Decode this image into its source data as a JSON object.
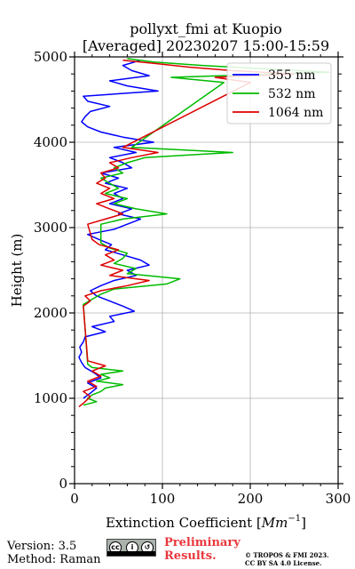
{
  "chart_data": {
    "type": "line",
    "title": "pollyxt_fmi at Kuopio",
    "subtitle": "[Averaged] 20230207 15:00-15:59",
    "xlabel": "Extinction Coefficient [",
    "xlabel_unit_base": "Mm",
    "xlabel_unit_exp": "−1",
    "xlabel_close": "]",
    "ylabel": "Height (m)",
    "xlim": [
      0,
      300
    ],
    "ylim": [
      0,
      5000
    ],
    "x_ticks": [
      0,
      100,
      200,
      300
    ],
    "x_tick_labels": [
      "0",
      "100",
      "200",
      "300"
    ],
    "y_ticks": [
      0,
      1000,
      2000,
      3000,
      4000,
      5000
    ],
    "y_tick_labels": [
      "0",
      "1000",
      "2000",
      "3000",
      "4000",
      "5000"
    ],
    "grid": true,
    "legend_position": "top-right",
    "series": [
      {
        "name": "355 nm",
        "color": "#0000ff",
        "height": [
          1000,
          1060,
          1120,
          1180,
          1240,
          1300,
          1360,
          1420,
          1480,
          1540,
          1600,
          1660,
          1720,
          1780,
          1840,
          1900,
          1960,
          2020,
          2080,
          2140,
          2200,
          2260,
          2320,
          2380,
          2440,
          2500,
          2560,
          2620,
          2680,
          2740,
          2800,
          2860,
          2920,
          2980,
          3040,
          3100,
          3160,
          3220,
          3280,
          3340,
          3400,
          3460,
          3520,
          3580,
          3640,
          3700,
          3760,
          3820,
          3880,
          3940,
          4000,
          4060,
          4120,
          4180,
          4240,
          4300,
          4360,
          4420,
          4480,
          4540,
          4600,
          4660,
          4720,
          4780,
          4840,
          4900,
          4960
        ],
        "values": [
          10,
          18,
          25,
          15,
          30,
          22,
          12,
          8,
          5,
          8,
          6,
          10,
          12,
          35,
          20,
          45,
          40,
          68,
          55,
          40,
          25,
          18,
          30,
          45,
          70,
          60,
          85,
          75,
          55,
          35,
          42,
          28,
          15,
          45,
          60,
          75,
          50,
          65,
          40,
          55,
          45,
          60,
          35,
          50,
          30,
          65,
          55,
          40,
          70,
          45,
          90,
          55,
          30,
          15,
          8,
          12,
          18,
          40,
          15,
          10,
          95,
          60,
          40,
          85,
          65,
          55,
          75
        ]
      },
      {
        "name": "532 nm",
        "color": "#00bb00",
        "height": [
          920,
          960,
          1000,
          1040,
          1080,
          1120,
          1160,
          1200,
          1240,
          1280,
          1320,
          1360,
          1400,
          2100,
          2160,
          2220,
          2280,
          2340,
          2400,
          2460,
          2520,
          2580,
          2640,
          2700,
          2760,
          2820,
          3040,
          3100,
          3160,
          3220,
          3280,
          3340,
          3400,
          3460,
          3520,
          3580,
          3640,
          3700,
          3760,
          3820,
          3880,
          3940,
          4700,
          4760,
          4820,
          4860,
          4900,
          4940,
          4980
        ],
        "values": [
          10,
          25,
          15,
          20,
          30,
          35,
          55,
          25,
          40,
          30,
          55,
          20,
          15,
          10,
          20,
          30,
          45,
          105,
          120,
          60,
          70,
          45,
          55,
          60,
          40,
          30,
          30,
          55,
          105,
          70,
          45,
          60,
          35,
          50,
          40,
          30,
          55,
          45,
          60,
          80,
          180,
          65,
          170,
          110,
          290,
          215,
          145,
          90,
          60
        ]
      },
      {
        "name": "1064 nm",
        "color": "#dd0000",
        "height": [
          900,
          960,
          1020,
          1080,
          1140,
          1200,
          1260,
          1320,
          1380,
          1440,
          2080,
          2140,
          2200,
          2260,
          2320,
          2380,
          2440,
          2500,
          2560,
          2620,
          2680,
          2740,
          2800,
          2860,
          3040,
          3100,
          3160,
          3220,
          3280,
          3340,
          3400,
          3460,
          3520,
          3580,
          3640,
          3700,
          3760,
          3820,
          3880,
          3940,
          4700,
          4760,
          4800,
          4840,
          4880,
          4920,
          4960
        ],
        "values": [
          5,
          12,
          18,
          10,
          25,
          15,
          30,
          20,
          35,
          15,
          10,
          18,
          12,
          30,
          60,
          85,
          40,
          55,
          30,
          45,
          35,
          50,
          28,
          20,
          15,
          35,
          55,
          40,
          25,
          45,
          30,
          40,
          25,
          35,
          30,
          50,
          40,
          65,
          95,
          55,
          200,
          160,
          250,
          180,
          130,
          95,
          55
        ]
      }
    ]
  },
  "footer": {
    "version": "Version: 3.5",
    "method": "Method: Raman",
    "license_badge": "CC BY SA",
    "preliminary_line1": "Preliminary",
    "preliminary_line2": "Results.",
    "copyright_line1": "© TROPOS & FMI 2023.",
    "copyright_line2": "CC BY SA 4.0 License."
  }
}
